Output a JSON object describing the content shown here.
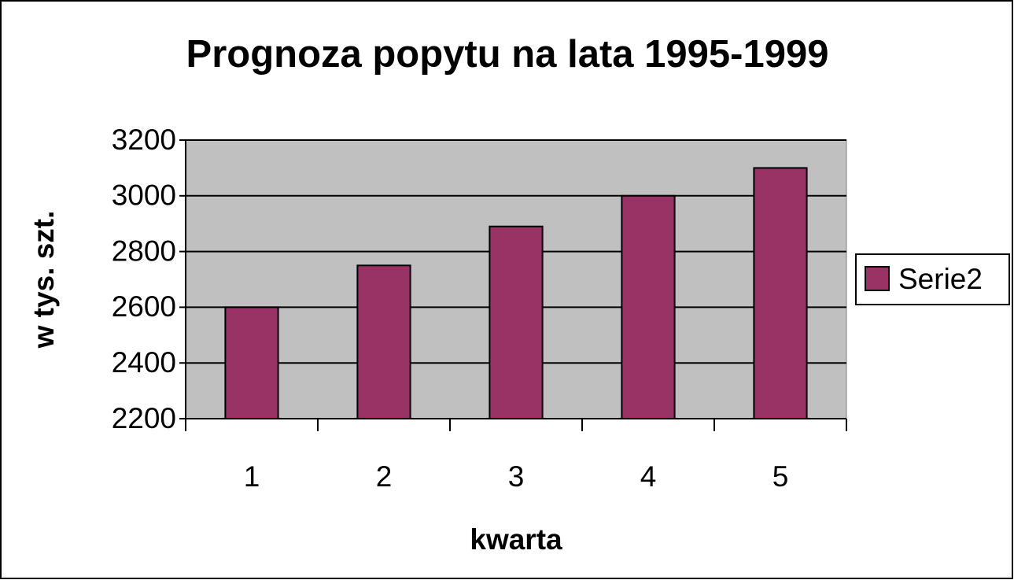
{
  "chart_data": {
    "type": "bar",
    "title": "Prognoza popytu na lata 1995-1999",
    "x_label": "kwarta",
    "y_label": "w tys. szt.",
    "categories": [
      "1",
      "2",
      "3",
      "4",
      "5"
    ],
    "series": [
      {
        "name": "Serie2",
        "color": "#993366",
        "values": [
          2600,
          2750,
          2890,
          3000,
          3100
        ]
      }
    ],
    "ylim": [
      2200,
      3200
    ],
    "yticks": [
      2200,
      2400,
      2600,
      2800,
      3000,
      3200
    ],
    "grid": true,
    "legend": "right",
    "plot_background": "#c0c0c0"
  }
}
